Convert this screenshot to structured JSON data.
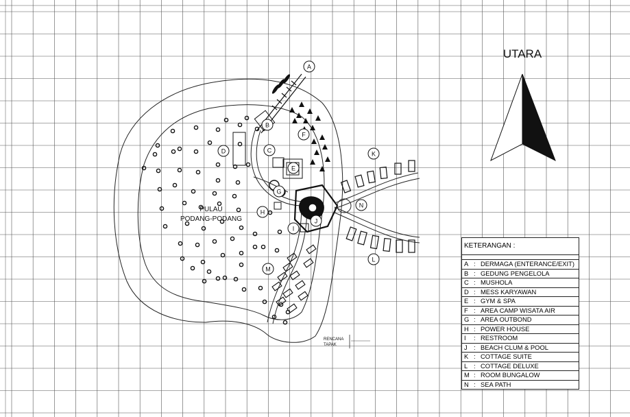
{
  "north": {
    "label": "UTARA"
  },
  "island": {
    "name_line1": "PULAU",
    "name_line2": "PODANG-PODANG"
  },
  "plan_tag": {
    "line1": "RENCANA",
    "line2": "TAPAK"
  },
  "markers": [
    {
      "letter": "A",
      "name": "marker-a"
    },
    {
      "letter": "B",
      "name": "marker-b"
    },
    {
      "letter": "C",
      "name": "marker-c"
    },
    {
      "letter": "D",
      "name": "marker-d"
    },
    {
      "letter": "E",
      "name": "marker-e"
    },
    {
      "letter": "F",
      "name": "marker-f"
    },
    {
      "letter": "G",
      "name": "marker-g"
    },
    {
      "letter": "H",
      "name": "marker-h"
    },
    {
      "letter": "I",
      "name": "marker-i"
    },
    {
      "letter": "J",
      "name": "marker-j"
    },
    {
      "letter": "K",
      "name": "marker-k"
    },
    {
      "letter": "L",
      "name": "marker-l"
    },
    {
      "letter": "M",
      "name": "marker-m"
    },
    {
      "letter": "N",
      "name": "marker-n"
    }
  ],
  "legend": {
    "title": "KETERANGAN :",
    "separator": ":",
    "items": [
      {
        "key": "A",
        "text": "DERMAGA (ENTERANCE/EXIT)"
      },
      {
        "key": "B",
        "text": "GEDUNG PENGELOLA"
      },
      {
        "key": "C",
        "text": "MUSHOLA"
      },
      {
        "key": "D",
        "text": "MESS KARYAWAN"
      },
      {
        "key": "E",
        "text": "GYM & SPA"
      },
      {
        "key": "F",
        "text": "AREA CAMP WISATA AIR"
      },
      {
        "key": "G",
        "text": "AREA OUTBOND"
      },
      {
        "key": "H",
        "text": "POWER HOUSE"
      },
      {
        "key": "I",
        "text": "RESTROOM"
      },
      {
        "key": "J",
        "text": "BEACH CLUM & POOL"
      },
      {
        "key": "K",
        "text": "COTTAGE SUITE"
      },
      {
        "key": "L",
        "text": "COTTAGE DELUXE"
      },
      {
        "key": "M",
        "text": "ROOM BUNGALOW"
      },
      {
        "key": "N",
        "text": "SEA PATH"
      }
    ]
  },
  "colors": {
    "ink": "#1a1a1a",
    "grid": "#4a4a4a",
    "paper": "#ffffff"
  }
}
